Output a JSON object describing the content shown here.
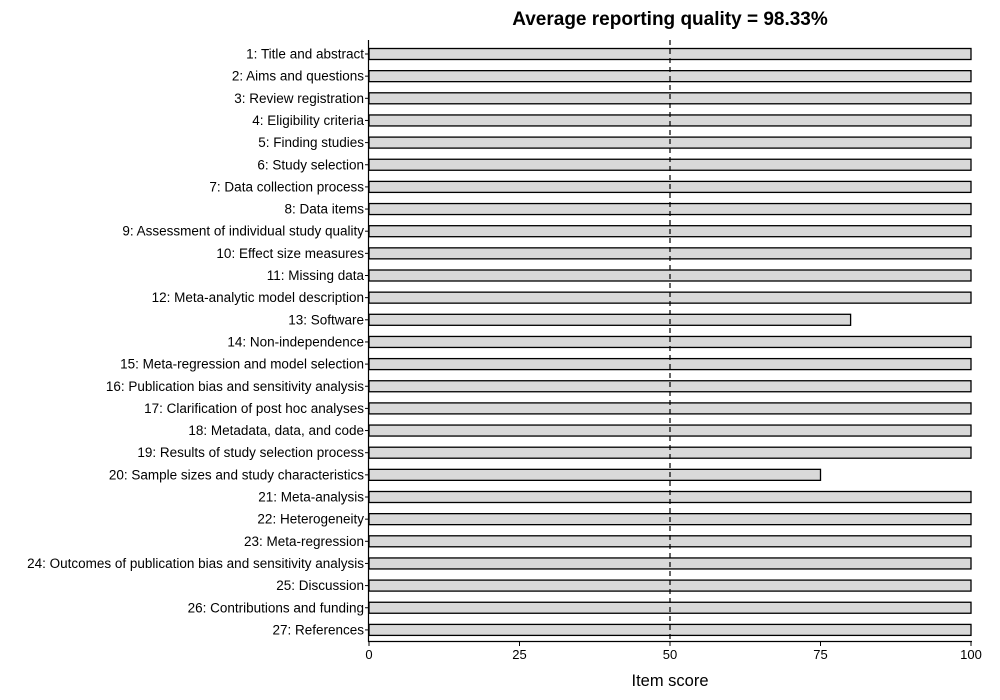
{
  "chart_data": {
    "type": "bar",
    "orientation": "horizontal",
    "title": "Average reporting quality = 98.33%",
    "xlabel": "Item score",
    "ylabel": "",
    "xlim": [
      0,
      100
    ],
    "xticks": [
      0,
      25,
      50,
      75,
      100
    ],
    "reference_line": {
      "x": 50,
      "style": "dashed"
    },
    "bar_fill": "#d9d9d9",
    "bar_edge": "#000000",
    "categories": [
      "1: Title and abstract",
      "2: Aims and questions",
      "3: Review registration",
      "4: Eligibility criteria",
      "5: Finding studies",
      "6: Study selection",
      "7: Data collection process",
      "8: Data items",
      "9: Assessment of individual study quality",
      "10: Effect size measures",
      "11: Missing data",
      "12: Meta-analytic model description",
      "13: Software",
      "14: Non-independence",
      "15: Meta-regression and model selection",
      "16: Publication bias and sensitivity analysis",
      "17: Clarification of post hoc analyses",
      "18: Metadata, data, and code",
      "19: Results of study selection process",
      "20: Sample sizes and study characteristics",
      "21: Meta-analysis",
      "22: Heterogeneity",
      "23: Meta-regression",
      "24: Outcomes of publication bias and sensitivity analysis",
      "25: Discussion",
      "26: Contributions and funding",
      "27: References"
    ],
    "values": [
      100,
      100,
      100,
      100,
      100,
      100,
      100,
      100,
      100,
      100,
      100,
      100,
      80,
      100,
      100,
      100,
      100,
      100,
      100,
      75,
      100,
      100,
      100,
      100,
      100,
      100,
      100
    ]
  }
}
